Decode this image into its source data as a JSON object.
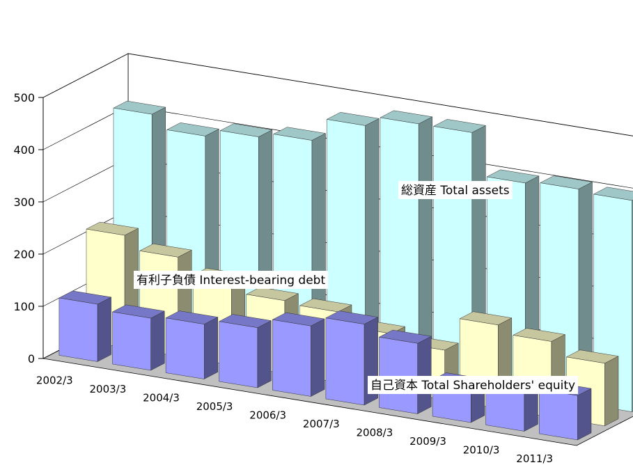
{
  "chart_data": {
    "type": "bar",
    "style": "3d-clustered-depth",
    "categories": [
      "2002/3",
      "2003/3",
      "2004/3",
      "2005/3",
      "2006/3",
      "2007/3",
      "2008/3",
      "2009/3",
      "2010/3",
      "2011/3"
    ],
    "series": [
      {
        "name": "総資産  Total assets",
        "color": "#ccffff",
        "values": [
          420,
          395,
          410,
          420,
          465,
          485,
          485,
          405,
          410,
          405
        ]
      },
      {
        "name": "有利子負債  Interest-bearing debt",
        "color": "#ffffcc",
        "values": [
          215,
          190,
          160,
          140,
          135,
          110,
          95,
          160,
          145,
          120
        ]
      },
      {
        "name": "自己資本  Total Shareholders' equity",
        "color": "#9999ff",
        "values": [
          110,
          100,
          105,
          115,
          135,
          155,
          135,
          70,
          80,
          85
        ]
      }
    ],
    "yticks": [
      0,
      100,
      200,
      300,
      400,
      500
    ],
    "ylim": [
      0,
      500
    ],
    "grid": true,
    "legend": "none"
  }
}
